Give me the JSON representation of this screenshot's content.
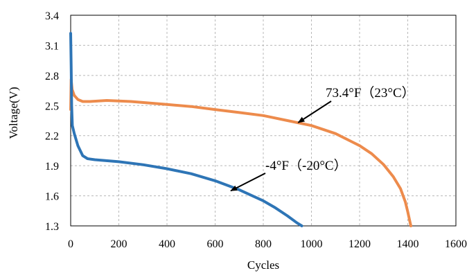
{
  "chart_data": {
    "type": "line",
    "xlabel": "Cycles",
    "ylabel": "Voltage(V)",
    "xlim": [
      0,
      1600
    ],
    "ylim": [
      1.3,
      3.4
    ],
    "xticks": [
      0,
      200,
      400,
      600,
      800,
      1000,
      1200,
      1400,
      1600
    ],
    "yticks": [
      1.3,
      1.6,
      1.9,
      2.2,
      2.5,
      2.8,
      3.1,
      3.4
    ],
    "xtick_labels": [
      "0",
      "200",
      "400",
      "600",
      "800",
      "1000",
      "1200",
      "1400",
      "1600"
    ],
    "ytick_labels": [
      "1.3",
      "1.6",
      "1.9",
      "2.2",
      "2.5",
      "2.8",
      "3.1",
      "3.4"
    ],
    "grid": true,
    "grid_style": "dashed",
    "series": [
      {
        "color": "#ED8B4C",
        "points": [
          [
            0,
            2.46
          ],
          [
            2,
            2.76
          ],
          [
            6,
            2.66
          ],
          [
            15,
            2.6
          ],
          [
            30,
            2.56
          ],
          [
            50,
            2.54
          ],
          [
            80,
            2.54
          ],
          [
            150,
            2.55
          ],
          [
            250,
            2.54
          ],
          [
            400,
            2.51
          ],
          [
            500,
            2.49
          ],
          [
            600,
            2.46
          ],
          [
            700,
            2.43
          ],
          [
            800,
            2.4
          ],
          [
            900,
            2.35
          ],
          [
            1000,
            2.3
          ],
          [
            1100,
            2.22
          ],
          [
            1200,
            2.1
          ],
          [
            1250,
            2.02
          ],
          [
            1300,
            1.91
          ],
          [
            1340,
            1.79
          ],
          [
            1370,
            1.67
          ],
          [
            1390,
            1.54
          ],
          [
            1400,
            1.44
          ],
          [
            1410,
            1.33
          ],
          [
            1413,
            1.3
          ]
        ]
      },
      {
        "color": "#2E75B6",
        "points": [
          [
            0,
            3.22
          ],
          [
            2,
            2.9
          ],
          [
            4,
            2.5
          ],
          [
            7,
            2.3
          ],
          [
            15,
            2.22
          ],
          [
            30,
            2.1
          ],
          [
            50,
            2.0
          ],
          [
            70,
            1.97
          ],
          [
            100,
            1.96
          ],
          [
            200,
            1.94
          ],
          [
            300,
            1.91
          ],
          [
            400,
            1.87
          ],
          [
            500,
            1.82
          ],
          [
            600,
            1.75
          ],
          [
            700,
            1.66
          ],
          [
            800,
            1.55
          ],
          [
            850,
            1.48
          ],
          [
            900,
            1.4
          ],
          [
            940,
            1.33
          ],
          [
            960,
            1.3
          ]
        ]
      }
    ],
    "annotations": [
      {
        "id": "warm",
        "text": "73.4°F（23°C）",
        "arrow_to": [
          945,
          2.33
        ]
      },
      {
        "id": "cold",
        "text": "-4°F（-20°C）",
        "arrow_to": [
          665,
          1.65
        ]
      }
    ]
  }
}
